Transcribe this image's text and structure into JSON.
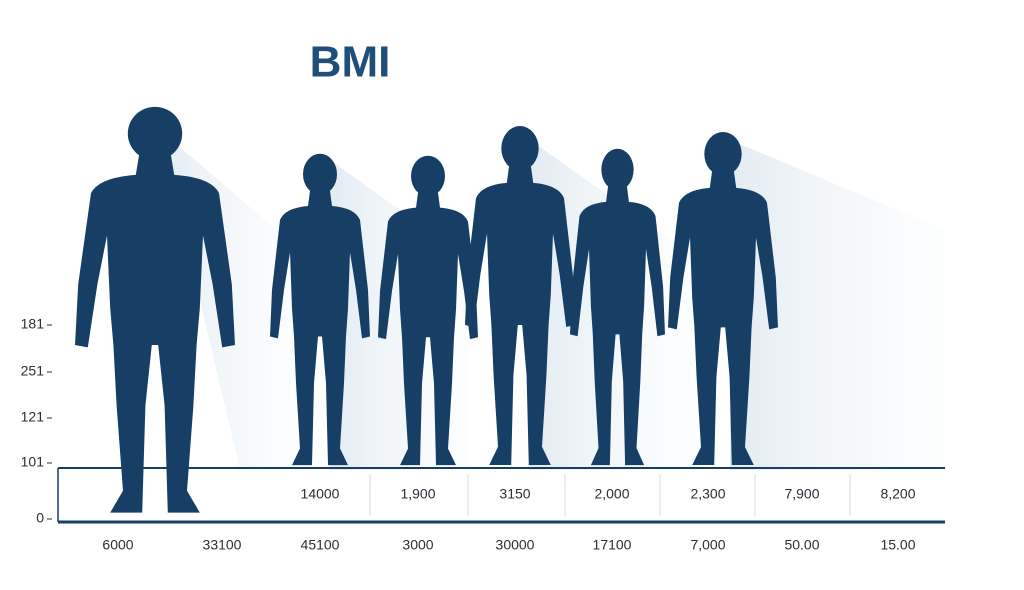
{
  "title": "BMI",
  "y_labels": [
    "181",
    "251",
    "121",
    "101",
    "0"
  ],
  "row_values": [
    "14000",
    "1,900",
    "3150",
    "2,000",
    "2,300",
    "7,900",
    "8,200"
  ],
  "bottom_labels": [
    "6000",
    "33100",
    "45100",
    "3000",
    "30000",
    "17100",
    "7,000",
    "50.00",
    "15.00"
  ]
}
